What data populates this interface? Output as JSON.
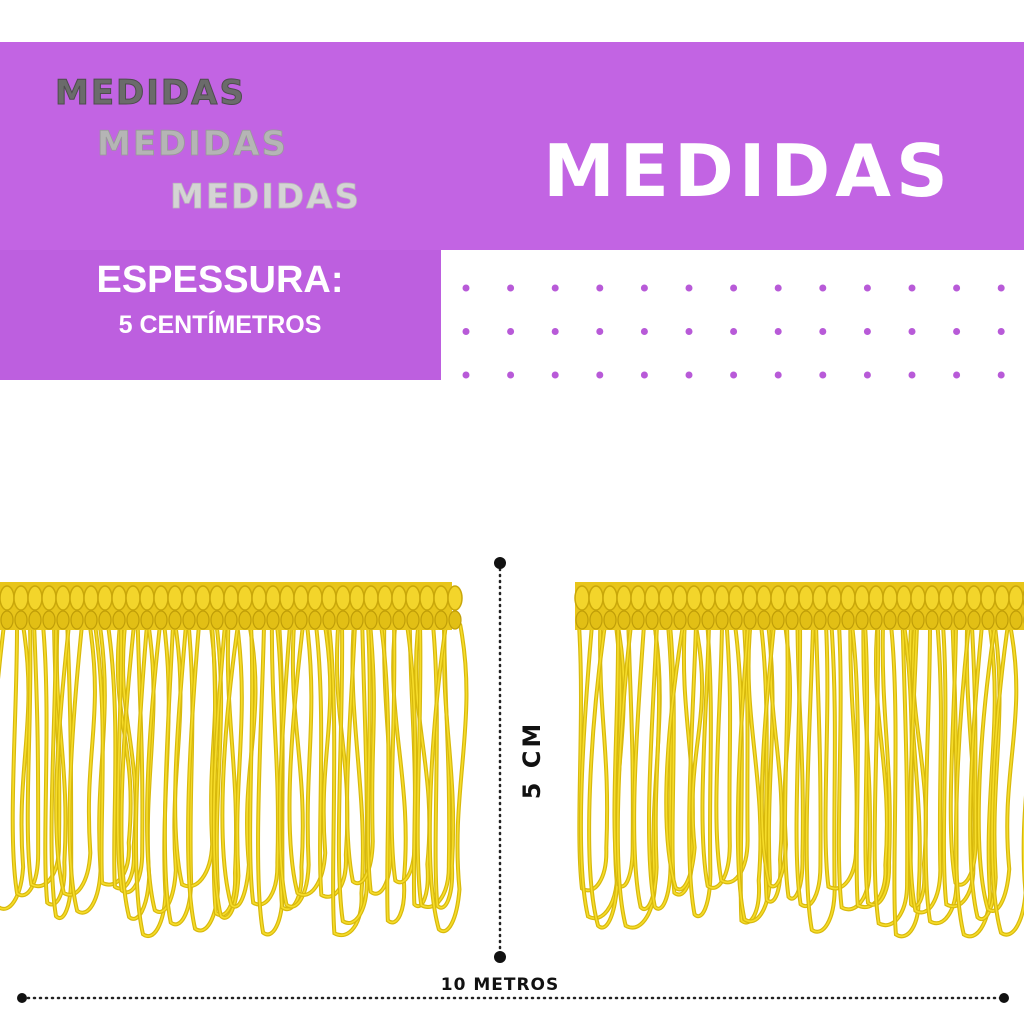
{
  "header": {
    "echo": [
      "MEDIDAS",
      "MEDIDAS",
      "MEDIDAS"
    ],
    "title": "MEDIDAS"
  },
  "thickness": {
    "label": "ESPESSURA:",
    "value": "5 CENTÍMETROS"
  },
  "dimensions": {
    "height": "5 CM",
    "length": "10 METROS"
  }
}
